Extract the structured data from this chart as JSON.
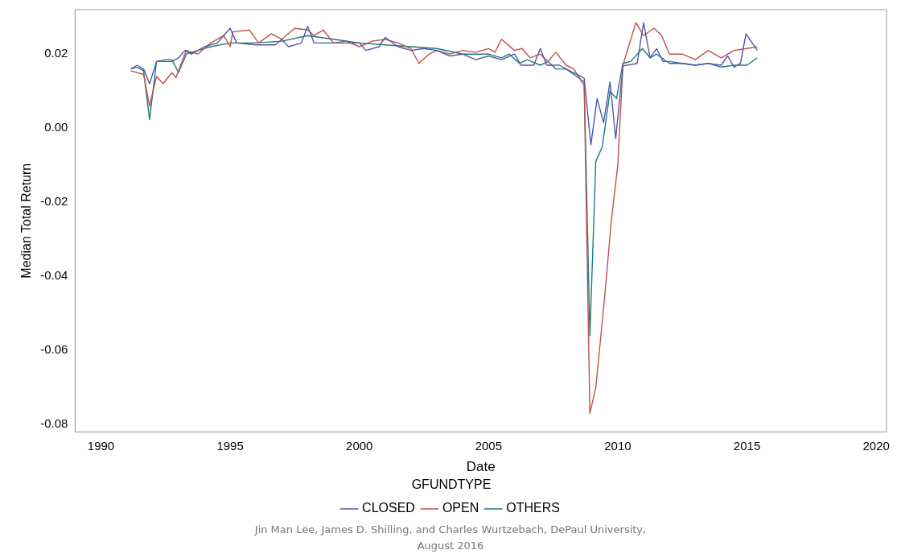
{
  "chart_data": {
    "type": "line",
    "xlabel": "Date",
    "ylabel": "Median Total Return",
    "legend_title": "GFUNDTYPE",
    "legend": "bottom",
    "grid": false,
    "marker": "none",
    "line_style": "solid",
    "xlim": [
      1989,
      2020.4
    ],
    "xticks": [
      1990,
      1995,
      2000,
      2005,
      2010,
      2015,
      2020
    ],
    "ylim": [
      -0.082,
      0.032
    ],
    "yticks": [
      {
        "value": -0.08,
        "label": "-0.08"
      },
      {
        "value": -0.06,
        "label": "-0.06"
      },
      {
        "value": -0.04,
        "label": "-0.04"
      },
      {
        "value": -0.02,
        "label": "-0.02"
      },
      {
        "value": 0,
        "label": "0.00"
      },
      {
        "value": 0.02,
        "label": "0.02"
      }
    ],
    "annotations": [
      "Jin Man Lee, James D. Shilling,  and Charles Wurtzebach, DePaul University, August 2016"
    ],
    "series": [
      {
        "name": "CLOSED",
        "color": "#5058a8",
        "x": [
          1991.15,
          1991.4,
          1991.65,
          1991.88,
          1992.15,
          1992.75,
          1993.0,
          1993.25,
          1993.5,
          1994.0,
          1994.5,
          1995.0,
          1995.25,
          1996.0,
          1996.75,
          1997.0,
          1997.25,
          1997.75,
          1998.0,
          1998.25,
          1999.0,
          1999.5,
          2000.0,
          2000.25,
          2000.75,
          2001.0,
          2001.5,
          2002.0,
          2002.5,
          2003.0,
          2003.5,
          2004.0,
          2004.5,
          2005.0,
          2005.5,
          2006.0,
          2006.25,
          2006.75,
          2007.0,
          2007.25,
          2007.75,
          2008.0,
          2008.7,
          2008.96,
          2009.2,
          2009.45,
          2009.7,
          2009.92,
          2010.2,
          2010.75,
          2011.0,
          2011.25,
          2011.5,
          2011.75,
          2012.0,
          2012.5,
          2013.0,
          2013.5,
          2014.0,
          2014.25,
          2014.5,
          2014.75,
          2014.96,
          2015.4
        ],
        "values": [
          0.016,
          0.017,
          0.016,
          0.012,
          0.018,
          0.018,
          0.019,
          0.021,
          0.02,
          0.022,
          0.023,
          0.027,
          0.023,
          0.0225,
          0.0225,
          0.024,
          0.022,
          0.023,
          0.0275,
          0.023,
          0.023,
          0.023,
          0.023,
          0.021,
          0.022,
          0.0245,
          0.022,
          0.021,
          0.0215,
          0.021,
          0.0195,
          0.02,
          0.0185,
          0.0195,
          0.0185,
          0.02,
          0.017,
          0.017,
          0.0215,
          0.017,
          0.017,
          0.016,
          0.0135,
          -0.0045,
          0.008,
          0.0015,
          0.0125,
          -0.0028,
          0.0168,
          0.0175,
          0.0285,
          0.019,
          0.0215,
          0.018,
          0.018,
          0.0175,
          0.017,
          0.0175,
          0.017,
          0.0195,
          0.0165,
          0.0175,
          0.0255,
          0.021
        ]
      },
      {
        "name": "OPEN",
        "color": "#c0504d",
        "x": [
          1991.15,
          1991.65,
          1991.88,
          1992.15,
          1992.4,
          1992.75,
          1992.9,
          1993.3,
          1993.75,
          1994.25,
          1994.75,
          1995.0,
          1995.1,
          1995.75,
          1996.1,
          1996.6,
          1997.0,
          1997.5,
          1998.0,
          1998.25,
          1998.6,
          1999.0,
          1999.5,
          2000.0,
          2000.5,
          2001.0,
          2001.5,
          2002.0,
          2002.3,
          2002.7,
          2003.0,
          2003.5,
          2004.0,
          2004.5,
          2005.0,
          2005.25,
          2005.5,
          2006.0,
          2006.3,
          2006.6,
          2007.0,
          2007.3,
          2007.6,
          2008.0,
          2008.3,
          2008.7,
          2008.92,
          2009.15,
          2009.5,
          2009.75,
          2010.0,
          2010.2,
          2010.7,
          2011.0,
          2011.4,
          2011.7,
          2012.0,
          2012.5,
          2013.0,
          2013.5,
          2014.0,
          2014.5,
          2015.0,
          2015.4
        ],
        "values": [
          0.0155,
          0.0145,
          0.006,
          0.014,
          0.012,
          0.015,
          0.0136,
          0.021,
          0.02,
          0.023,
          0.025,
          0.022,
          0.026,
          0.0265,
          0.023,
          0.0255,
          0.024,
          0.027,
          0.0265,
          0.025,
          0.0265,
          0.023,
          0.0235,
          0.022,
          0.0235,
          0.024,
          0.023,
          0.0215,
          0.0175,
          0.02,
          0.021,
          0.02,
          0.021,
          0.0205,
          0.0215,
          0.0205,
          0.024,
          0.021,
          0.0215,
          0.019,
          0.02,
          0.018,
          0.0205,
          0.017,
          0.016,
          0.0115,
          -0.077,
          -0.07,
          -0.045,
          -0.025,
          -0.01,
          0.017,
          0.0285,
          0.025,
          0.027,
          0.025,
          0.02,
          0.02,
          0.0185,
          0.021,
          0.019,
          0.021,
          0.0215,
          0.022
        ]
      },
      {
        "name": "OTHERS",
        "color": "#1f7a7a",
        "x": [
          1991.15,
          1991.4,
          1991.65,
          1991.88,
          1992.15,
          1992.5,
          1992.75,
          1993.0,
          1993.3,
          1993.75,
          1994.25,
          1995.0,
          1996.0,
          1997.0,
          1998.0,
          1999.0,
          2000.0,
          2001.0,
          2002.0,
          2003.0,
          2004.0,
          2005.0,
          2005.5,
          2005.8,
          2006.2,
          2006.5,
          2007.0,
          2007.3,
          2007.6,
          2008.0,
          2008.4,
          2008.7,
          2008.92,
          2009.15,
          2009.4,
          2009.7,
          2009.95,
          2010.2,
          2010.5,
          2010.95,
          2011.25,
          2011.5,
          2012.0,
          2012.5,
          2013.0,
          2013.5,
          2014.0,
          2014.5,
          2015.0,
          2015.4
        ],
        "values": [
          0.016,
          0.0165,
          0.0155,
          0.0023,
          0.018,
          0.0185,
          0.0185,
          0.015,
          0.02,
          0.021,
          0.022,
          0.023,
          0.023,
          0.0235,
          0.025,
          0.024,
          0.023,
          0.0225,
          0.022,
          0.0215,
          0.02,
          0.02,
          0.019,
          0.02,
          0.0175,
          0.0185,
          0.017,
          0.018,
          0.016,
          0.016,
          0.014,
          0.0125,
          -0.056,
          -0.009,
          -0.005,
          0.01,
          0.008,
          0.0175,
          0.018,
          0.0215,
          0.019,
          0.02,
          0.0175,
          0.0175,
          0.017,
          0.0175,
          0.0165,
          0.017,
          0.017,
          0.019
        ]
      }
    ]
  }
}
